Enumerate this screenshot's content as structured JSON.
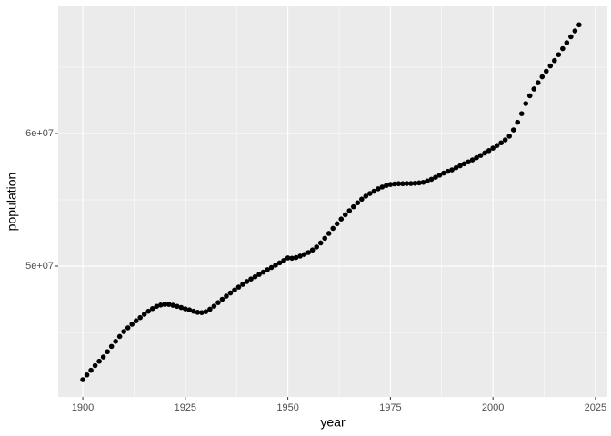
{
  "chart_data": {
    "type": "scatter",
    "x_label": "year",
    "y_label": "population",
    "x": [
      1900,
      1901,
      1902,
      1903,
      1904,
      1905,
      1906,
      1907,
      1908,
      1909,
      1910,
      1911,
      1912,
      1913,
      1914,
      1915,
      1916,
      1917,
      1918,
      1919,
      1920,
      1921,
      1922,
      1923,
      1924,
      1925,
      1926,
      1927,
      1928,
      1929,
      1930,
      1931,
      1932,
      1933,
      1934,
      1935,
      1936,
      1937,
      1938,
      1939,
      1940,
      1941,
      1942,
      1943,
      1944,
      1945,
      1946,
      1947,
      1948,
      1949,
      1950,
      1951,
      1952,
      1953,
      1954,
      1955,
      1956,
      1957,
      1958,
      1959,
      1960,
      1961,
      1962,
      1963,
      1964,
      1965,
      1966,
      1967,
      1968,
      1969,
      1970,
      1971,
      1972,
      1973,
      1974,
      1975,
      1976,
      1977,
      1978,
      1979,
      1980,
      1981,
      1982,
      1983,
      1984,
      1985,
      1986,
      1987,
      1988,
      1989,
      1990,
      1991,
      1992,
      1993,
      1994,
      1995,
      1996,
      1997,
      1998,
      1999,
      2000,
      2001,
      2002,
      2003,
      2004,
      2005,
      2006,
      2007,
      2008,
      2009,
      2010,
      2011,
      2012,
      2013,
      2014,
      2015,
      2016,
      2017,
      2018,
      2019,
      2020,
      2021
    ],
    "values": [
      41440000,
      41800000,
      42150000,
      42500000,
      42830000,
      43150000,
      43550000,
      43950000,
      44330000,
      44700000,
      45070000,
      45350000,
      45620000,
      45880000,
      46120000,
      46370000,
      46600000,
      46800000,
      46970000,
      47070000,
      47120000,
      47120000,
      47050000,
      46970000,
      46880000,
      46780000,
      46700000,
      46600000,
      46520000,
      46500000,
      46570000,
      46750000,
      46980000,
      47250000,
      47500000,
      47740000,
      47980000,
      48200000,
      48420000,
      48630000,
      48840000,
      49030000,
      49200000,
      49380000,
      49550000,
      49730000,
      49900000,
      50080000,
      50250000,
      50430000,
      50620000,
      50600000,
      50650000,
      50760000,
      50880000,
      51030000,
      51220000,
      51450000,
      51750000,
      52100000,
      52470000,
      52850000,
      53200000,
      53550000,
      53880000,
      54180000,
      54480000,
      54780000,
      55050000,
      55280000,
      55480000,
      55650000,
      55830000,
      55970000,
      56080000,
      56160000,
      56200000,
      56220000,
      56220000,
      56230000,
      56230000,
      56250000,
      56280000,
      56320000,
      56420000,
      56550000,
      56700000,
      56860000,
      57020000,
      57150000,
      57260000,
      57420000,
      57570000,
      57720000,
      57860000,
      58010000,
      58180000,
      58350000,
      58530000,
      58710000,
      58900000,
      59100000,
      59300000,
      59520000,
      59800000,
      60270000,
      60850000,
      61500000,
      62260000,
      62850000,
      63360000,
      63830000,
      64280000,
      64700000,
      65100000,
      65500000,
      65950000,
      66400000,
      66850000,
      67300000,
      67740000,
      68200000
    ],
    "color": "#000000",
    "xlim": [
      1894,
      2027.9
    ],
    "xticks": [
      1900,
      1925,
      1950,
      1975,
      2000,
      2025
    ],
    "ylim": [
      40140000,
      69590000
    ],
    "yticks": [
      {
        "value": 50000000,
        "label": "5e+07"
      },
      {
        "value": 60000000,
        "label": "6e+07"
      }
    ],
    "grid": true
  }
}
